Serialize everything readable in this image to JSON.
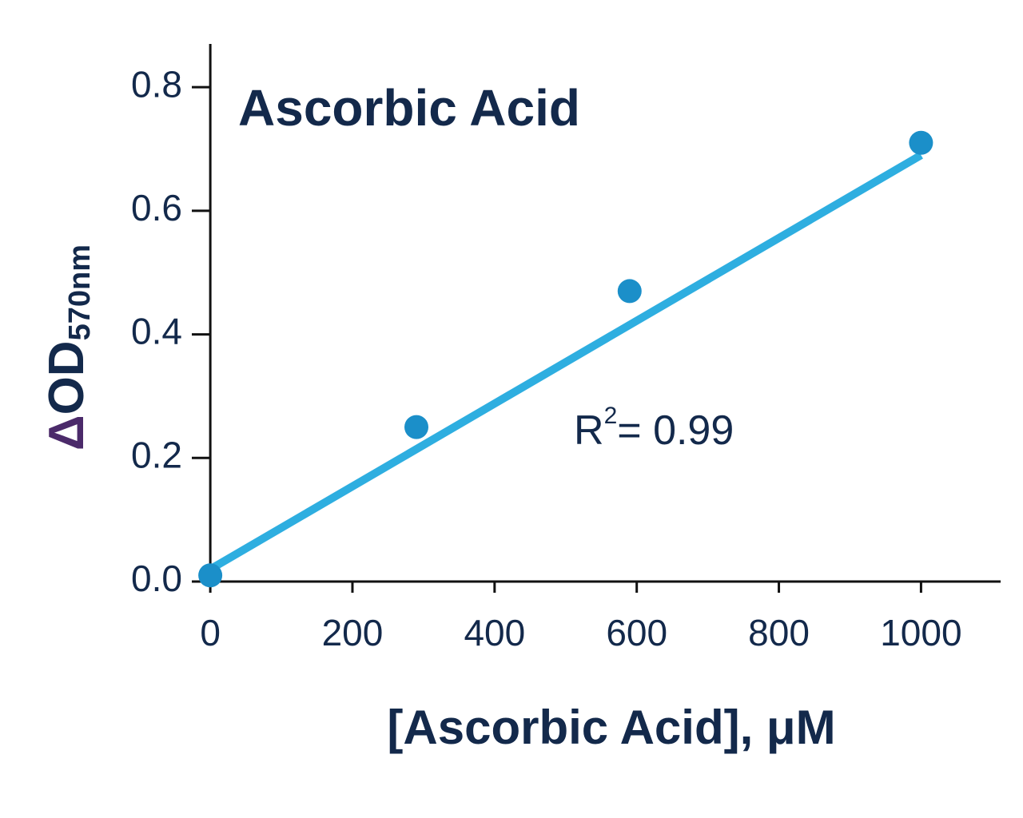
{
  "chart_data": {
    "type": "scatter",
    "title": "Ascorbic Acid",
    "x_label": "[Ascorbic Acid], μM",
    "y_label": [
      "Δ",
      "OD",
      "570nm"
    ],
    "annotation": [
      "R",
      "2",
      "= 0.99"
    ],
    "points": {
      "x": [
        0,
        290,
        590,
        1000
      ],
      "values": [
        0.01,
        0.25,
        0.47,
        0.71
      ],
      "color": "#1b8fc9"
    },
    "fit": {
      "x": [
        0,
        1000
      ],
      "values": [
        0.02,
        0.69
      ],
      "color": "#2eaee0"
    },
    "xlim": [
      -26,
      1112
    ],
    "ylim": [
      0,
      0.87
    ],
    "xticks": [
      0,
      200,
      400,
      600,
      800,
      1000
    ],
    "yticks": [
      {
        "value": 0,
        "label": "0.0"
      },
      0.2,
      0.4,
      0.6,
      0.8
    ],
    "text_color": "#13294b",
    "delta_color": "#4b2a6a"
  }
}
